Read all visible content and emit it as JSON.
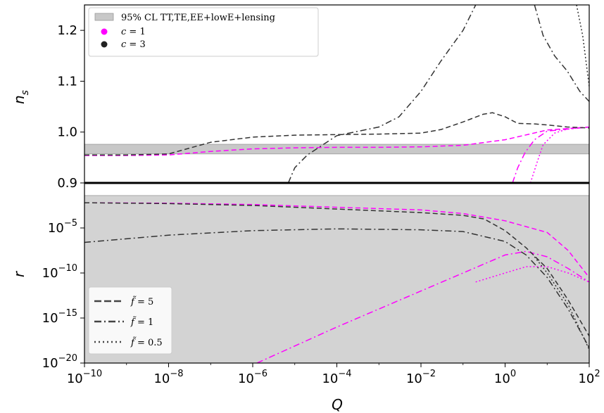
{
  "chart_data": [
    {
      "type": "line",
      "panel": "top",
      "ylabel": "n_s",
      "ylim": [
        0.9,
        1.25
      ],
      "xscale": "log",
      "xlim": [
        1e-10,
        100
      ],
      "yticks": [
        "0.9",
        "1.0",
        "1.1",
        "1.2"
      ],
      "band": {
        "label": "95% CL TT,TE,EE+lowE+lensing",
        "range": [
          0.957,
          0.976
        ],
        "color": "#c8c8c8"
      },
      "legend": {
        "position": "top-left",
        "entries": [
          {
            "label": "95% CL TT,TE,EE+lowE+lensing",
            "kind": "band"
          },
          {
            "label_italic": "c",
            "label_rest": " = 1",
            "kind": "dot",
            "color": "#ff00ff"
          },
          {
            "label_italic": "c",
            "label_rest": " = 3",
            "kind": "dot",
            "color": "#222222"
          }
        ]
      },
      "series": [
        {
          "c": 1,
          "f": 5,
          "color": "#ff00ff",
          "style": "dashed",
          "points": [
            [
              1e-10,
              0.954
            ],
            [
              1e-09,
              0.954
            ],
            [
              1e-08,
              0.955
            ],
            [
              1e-07,
              0.962
            ],
            [
              1e-06,
              0.967
            ],
            [
              1e-05,
              0.969
            ],
            [
              0.0001,
              0.97
            ],
            [
              0.001,
              0.97
            ],
            [
              0.01,
              0.971
            ],
            [
              0.1,
              0.974
            ],
            [
              1,
              0.985
            ],
            [
              10,
              1.004
            ],
            [
              100,
              1.01
            ]
          ]
        },
        {
          "c": 1,
          "f": 1,
          "color": "#ff00ff",
          "style": "dashdot",
          "points": [
            [
              1.5,
              0.9
            ],
            [
              2,
              0.93
            ],
            [
              3,
              0.96
            ],
            [
              5,
              0.985
            ],
            [
              10,
              1.002
            ],
            [
              100,
              1.01
            ]
          ]
        },
        {
          "c": 1,
          "f": 0.5,
          "color": "#ff00ff",
          "style": "dotted",
          "points": [
            [
              4,
              0.9
            ],
            [
              6,
              0.945
            ],
            [
              8,
              0.975
            ],
            [
              15,
              0.998
            ],
            [
              30,
              1.006
            ],
            [
              100,
              1.01
            ]
          ]
        },
        {
          "c": 3,
          "f": 5,
          "color": "#333333",
          "style": "dashed",
          "points": [
            [
              1e-10,
              0.955
            ],
            [
              1e-09,
              0.955
            ],
            [
              1e-08,
              0.957
            ],
            [
              1e-07,
              0.98
            ],
            [
              1e-06,
              0.99
            ],
            [
              1e-05,
              0.994
            ],
            [
              0.0001,
              0.995
            ],
            [
              0.001,
              0.996
            ],
            [
              0.01,
              0.998
            ],
            [
              0.03,
              1.005
            ],
            [
              0.1,
              1.02
            ],
            [
              0.3,
              1.035
            ],
            [
              0.5,
              1.038
            ],
            [
              1,
              1.03
            ],
            [
              2,
              1.017
            ],
            [
              5,
              1.016
            ],
            [
              10,
              1.014
            ],
            [
              30,
              1.01
            ],
            [
              100,
              1.008
            ]
          ]
        },
        {
          "c": 3,
          "f": 1,
          "color": "#333333",
          "style": "dashdot",
          "points": [
            [
              7e-06,
              0.9
            ],
            [
              1e-05,
              0.93
            ],
            [
              2e-05,
              0.955
            ],
            [
              0.0001,
              0.993
            ],
            [
              0.001,
              1.01
            ],
            [
              0.003,
              1.03
            ],
            [
              0.01,
              1.08
            ],
            [
              0.03,
              1.14
            ],
            [
              0.1,
              1.2
            ],
            [
              0.2,
              1.25
            ]
          ]
        },
        {
          "c": 3,
          "f": 1,
          "color": "#333333",
          "style": "dashdot",
          "points": [
            [
              5,
              1.25
            ],
            [
              8,
              1.19
            ],
            [
              15,
              1.15
            ],
            [
              30,
              1.12
            ],
            [
              60,
              1.08
            ],
            [
              100,
              1.06
            ]
          ]
        },
        {
          "c": 3,
          "f": 0.5,
          "color": "#333333",
          "style": "dotted",
          "points": [
            [
              50,
              1.25
            ],
            [
              70,
              1.19
            ],
            [
              100,
              1.09
            ]
          ]
        }
      ]
    },
    {
      "type": "line",
      "panel": "bottom",
      "ylabel": "r",
      "xlabel": "Q",
      "ylim_log10": [
        -20,
        0
      ],
      "xscale": "log",
      "yscale": "log",
      "xlim": [
        1e-10,
        100
      ],
      "band": {
        "top_log10": -1.4,
        "color": "#d3d3d3"
      },
      "legend": {
        "position": "bottom-left",
        "entries": [
          {
            "label_italic": "f̃",
            "label_rest": " = 5",
            "style": "dashed"
          },
          {
            "label_italic": "f̃",
            "label_rest": " = 1",
            "style": "dashdot"
          },
          {
            "label_italic": "f̃",
            "label_rest": " = 0.5",
            "style": "dotted"
          }
        ]
      },
      "series": [
        {
          "c": 1,
          "f": 5,
          "color": "#ff00ff",
          "style": "dashed",
          "points_log10": [
            [
              -10,
              -2.2
            ],
            [
              -8,
              -2.25
            ],
            [
              -6,
              -2.4
            ],
            [
              -4,
              -2.7
            ],
            [
              -2,
              -3.0
            ],
            [
              -1,
              -3.4
            ],
            [
              0,
              -4.2
            ],
            [
              1,
              -5.5
            ],
            [
              1.5,
              -7.5
            ],
            [
              2,
              -10.5
            ]
          ]
        },
        {
          "c": 1,
          "f": 1,
          "color": "#ff00ff",
          "style": "dashdot",
          "points_log10": [
            [
              -5.9,
              -20
            ],
            [
              -4,
              -16
            ],
            [
              -2,
              -12
            ],
            [
              -1,
              -10
            ],
            [
              0,
              -8
            ],
            [
              0.5,
              -7.6
            ],
            [
              1,
              -8.2
            ],
            [
              1.5,
              -9.5
            ],
            [
              2,
              -11
            ]
          ]
        },
        {
          "c": 1,
          "f": 0.5,
          "color": "#ff00ff",
          "style": "dotted",
          "points_log10": [
            [
              -0.7,
              -11
            ],
            [
              0,
              -10
            ],
            [
              0.5,
              -9.3
            ],
            [
              1,
              -9.3
            ],
            [
              1.5,
              -10
            ],
            [
              2,
              -11
            ]
          ]
        },
        {
          "c": 3,
          "f": 5,
          "color": "#333333",
          "style": "dashed",
          "points_log10": [
            [
              -10,
              -2.2
            ],
            [
              -8,
              -2.3
            ],
            [
              -6,
              -2.5
            ],
            [
              -4,
              -2.9
            ],
            [
              -2,
              -3.3
            ],
            [
              -1,
              -3.6
            ],
            [
              -0.5,
              -4.0
            ],
            [
              0,
              -5.3
            ],
            [
              0.5,
              -7.2
            ],
            [
              1,
              -9.5
            ],
            [
              1.5,
              -13
            ],
            [
              2,
              -17
            ]
          ]
        },
        {
          "c": 3,
          "f": 1,
          "color": "#333333",
          "style": "dashdot",
          "points_log10": [
            [
              -10,
              -6.6
            ],
            [
              -8,
              -5.8
            ],
            [
              -6,
              -5.3
            ],
            [
              -4,
              -5.1
            ],
            [
              -2,
              -5.2
            ],
            [
              -1,
              -5.4
            ],
            [
              0,
              -6.5
            ],
            [
              0.5,
              -8.0
            ],
            [
              1,
              -10.5
            ],
            [
              1.5,
              -14
            ],
            [
              2,
              -18.3
            ]
          ]
        },
        {
          "c": 3,
          "f": 0.5,
          "color": "#333333",
          "style": "dotted",
          "points_log10": [
            [
              0.7,
              -8.2
            ],
            [
              1,
              -10
            ],
            [
              1.5,
              -13.5
            ],
            [
              2,
              -18.5
            ]
          ]
        }
      ]
    }
  ],
  "axes": {
    "top_ylabel_main": "n",
    "top_ylabel_sub": "s",
    "bottom_ylabel": "r",
    "xlabel": "Q",
    "x_tick_exponents": [
      "-10",
      "-8",
      "-6",
      "-4",
      "-2",
      "0",
      "2"
    ],
    "y_tick_exponents_bottom": [
      "-5",
      "-10",
      "-15",
      "-20"
    ],
    "tick_base": "10"
  }
}
